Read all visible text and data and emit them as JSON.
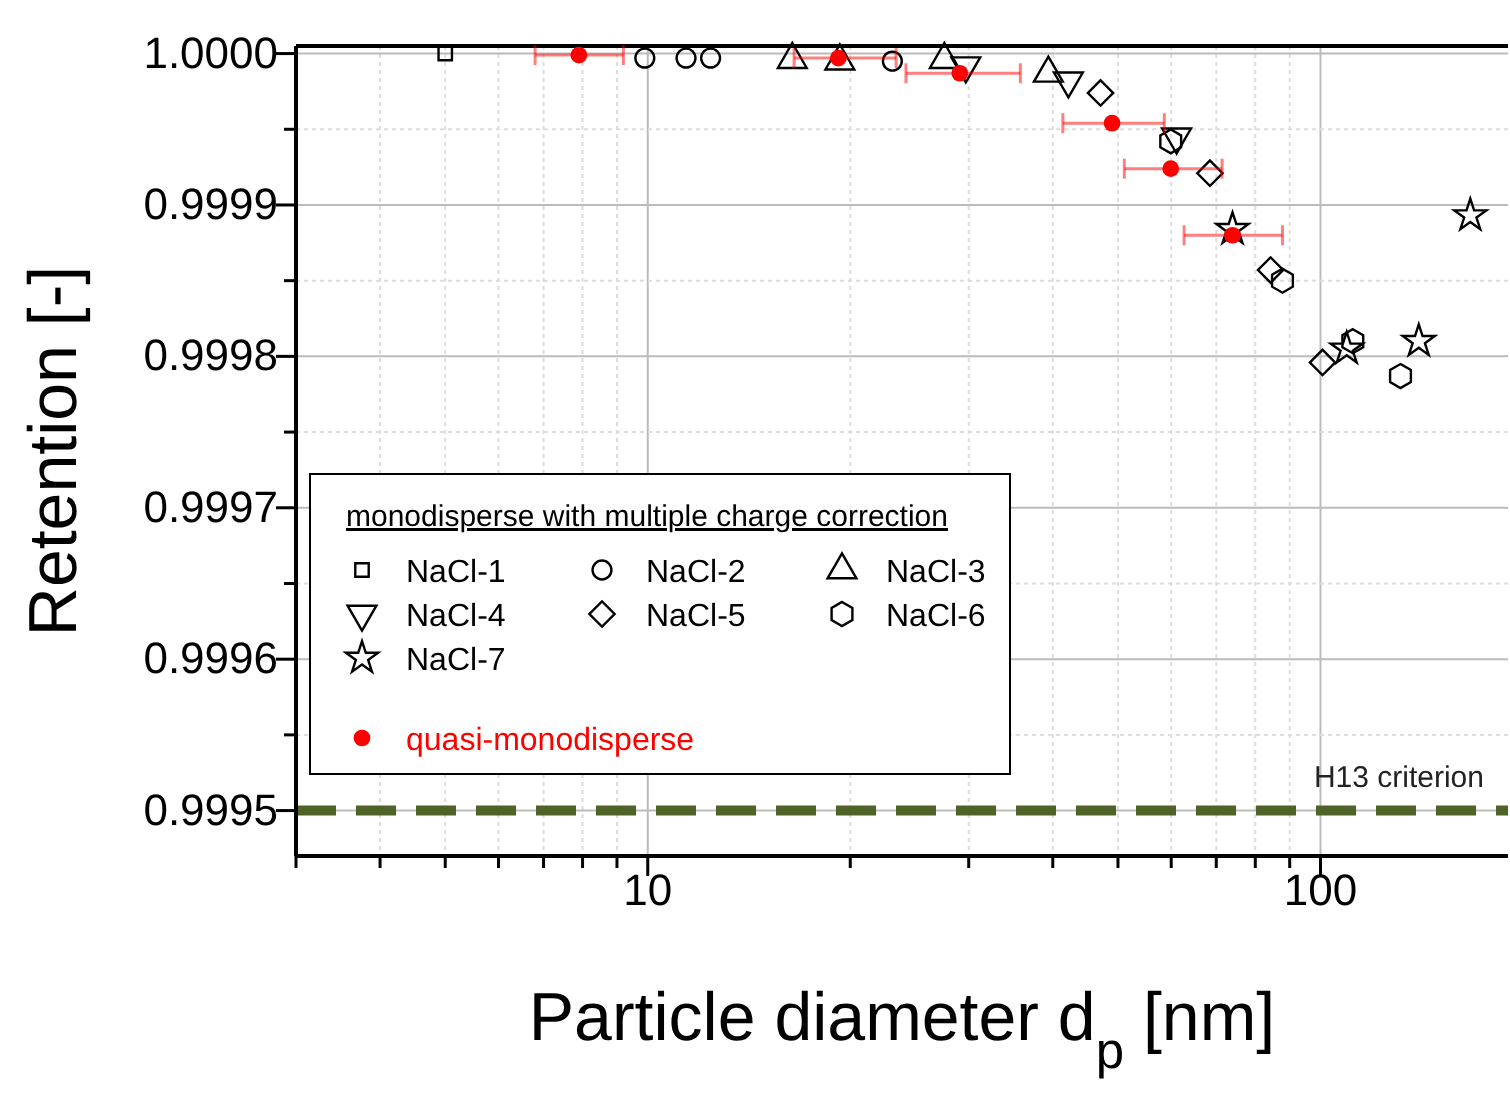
{
  "chart_data": {
    "type": "scatter",
    "xlabel": "Particle diameter d$_{p}$ [nm]",
    "ylabel": "Retention [-]",
    "log": "x",
    "grid": true,
    "legend": "bottom left",
    "legend_title": "monodisperse with multiple charge correction",
    "xlim": [
      3,
      190
    ],
    "ylim": [
      0.99947,
      1.000005
    ],
    "xticks": [
      {
        "value": 3,
        "label": null
      },
      {
        "value": 4,
        "label": null
      },
      {
        "value": 5,
        "label": null
      },
      {
        "value": 6,
        "label": null
      },
      {
        "value": 7,
        "label": null
      },
      {
        "value": 8,
        "label": null
      },
      {
        "value": 9,
        "label": null
      },
      10,
      {
        "value": 20,
        "label": null
      },
      {
        "value": 30,
        "label": null
      },
      {
        "value": 40,
        "label": null
      },
      {
        "value": 50,
        "label": null
      },
      {
        "value": 60,
        "label": null
      },
      {
        "value": 70,
        "label": null
      },
      {
        "value": 80,
        "label": null
      },
      {
        "value": 90,
        "label": null
      },
      100
    ],
    "yticks": [
      {
        "value": 0.9995,
        "label": "0.9995"
      },
      {
        "value": 0.99955,
        "label": null
      },
      {
        "value": 0.9996,
        "label": "0.9996"
      },
      {
        "value": 0.99965,
        "label": null
      },
      {
        "value": 0.9997,
        "label": "0.9997"
      },
      {
        "value": 0.99975,
        "label": null
      },
      {
        "value": 0.9998,
        "label": "0.9998"
      },
      {
        "value": 0.99985,
        "label": null
      },
      {
        "value": 0.9999,
        "label": "0.9999"
      },
      {
        "value": 0.99995,
        "label": null
      },
      {
        "value": 1.0,
        "label": "1.0000"
      }
    ],
    "ref_lines": [
      {
        "axis": "y",
        "value": 0.9995,
        "label": "H13 criterion",
        "color": "#4f6228",
        "line_style": "dashed"
      }
    ],
    "series": [
      {
        "name": "NaCl-1",
        "color": "#000000",
        "marker": "square",
        "x": [
          5
        ],
        "values": [
          1.0
        ]
      },
      {
        "name": "NaCl-2",
        "color": "#000000",
        "marker": "circle",
        "x": [
          9.9,
          11.4,
          12.4,
          23.1
        ],
        "values": [
          0.999997,
          0.999997,
          0.999997,
          0.999995
        ]
      },
      {
        "name": "NaCl-3",
        "color": "#000000",
        "marker": "triangle",
        "x": [
          16.4,
          19.3,
          27.6,
          39.4
        ],
        "values": [
          0.999996,
          0.999995,
          0.999996,
          0.999987
        ]
      },
      {
        "name": "NaCl-4",
        "color": "#000000",
        "marker": "triangle-down",
        "x": [
          29.7,
          42.2,
          61.1
        ],
        "values": [
          0.999992,
          0.999982,
          0.999945
        ]
      },
      {
        "name": "NaCl-5",
        "color": "#000000",
        "marker": "diamond",
        "x": [
          47.1,
          68.5,
          84.3,
          100.7
        ],
        "values": [
          0.999974,
          0.999921,
          0.999857,
          0.999796
        ]
      },
      {
        "name": "NaCl-6",
        "color": "#000000",
        "x": [
          59.9,
          87.8,
          111.7,
          131.5
        ],
        "values": [
          0.999942,
          0.99985,
          0.99981,
          0.999787
        ]
      },
      {
        "name": "NaCl-7",
        "color": "#000000",
        "marker": "star",
        "x": [
          74,
          109.4,
          140,
          167
        ],
        "values": [
          0.999884,
          0.999805,
          0.99981,
          0.999893
        ]
      },
      {
        "name": "quasi-monodisperse",
        "color": "#ff0000",
        "marker": "filled-circle",
        "x": [
          7.9,
          19.2,
          29.1,
          49,
          59.9,
          74
        ],
        "values": [
          0.999999,
          0.999997,
          0.999987,
          0.999954,
          0.999924,
          0.99988
        ],
        "xerrors": [
          [
            6.8,
            9.2
          ],
          [
            16.5,
            23.4
          ],
          [
            24.2,
            35.8
          ],
          [
            41.4,
            58.6
          ],
          [
            51.1,
            71.4
          ],
          [
            62.7,
            87.8
          ]
        ]
      }
    ]
  }
}
